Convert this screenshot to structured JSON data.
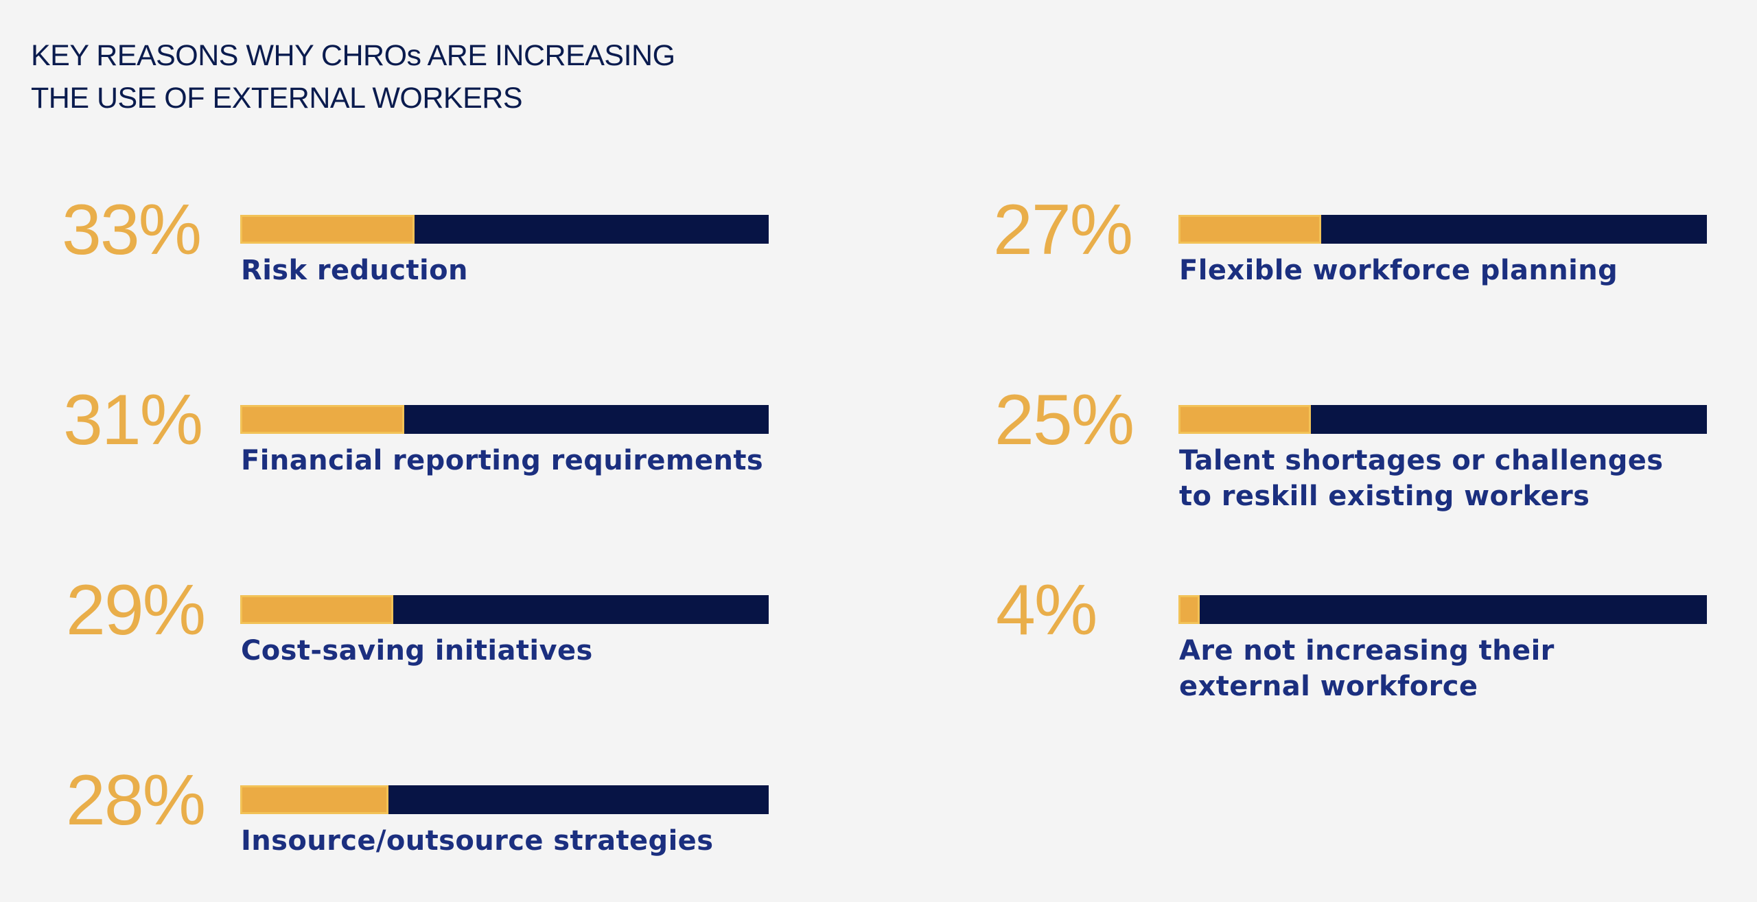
{
  "title": {
    "line1": "KEY REASONS WHY CHROs ARE INCREASING",
    "line2": "THE USE OF EXTERNAL WORKERS"
  },
  "colors": {
    "background": "#f4f4f4",
    "title": "#0a1b4e",
    "percent": "#e9ae4a",
    "bar_fill": "#ebab44",
    "bar_track": "#071445",
    "label": "#1b2f7f"
  },
  "chart_data": {
    "type": "bar",
    "title": "KEY REASONS WHY CHROs ARE INCREASING THE USE OF EXTERNAL WORKERS",
    "orientation": "horizontal",
    "unit": "%",
    "xlim": [
      0,
      100
    ],
    "categories": [
      "Risk reduction",
      "Financial reporting requirements",
      "Cost-saving initiatives",
      "Insource/outsource strategies",
      "Flexible workforce planning",
      "Talent shortages or challenges to reskill existing workers",
      "Are not increasing their external workforce"
    ],
    "values": [
      33,
      31,
      29,
      28,
      27,
      25,
      4
    ],
    "items": [
      {
        "value": 33,
        "percent_label": "33%",
        "label_lines": [
          "Risk reduction"
        ]
      },
      {
        "value": 31,
        "percent_label": "31%",
        "label_lines": [
          "Financial reporting requirements"
        ]
      },
      {
        "value": 29,
        "percent_label": "29%",
        "label_lines": [
          "Cost-saving initiatives"
        ]
      },
      {
        "value": 28,
        "percent_label": "28%",
        "label_lines": [
          "Insource/outsource strategies"
        ]
      },
      {
        "value": 27,
        "percent_label": "27%",
        "label_lines": [
          "Flexible workforce planning"
        ]
      },
      {
        "value": 25,
        "percent_label": "25%",
        "label_lines": [
          "Talent shortages or challenges",
          "to reskill existing workers"
        ]
      },
      {
        "value": 4,
        "percent_label": "4%",
        "label_lines": [
          "Are not increasing their",
          "external workforce"
        ]
      }
    ]
  }
}
